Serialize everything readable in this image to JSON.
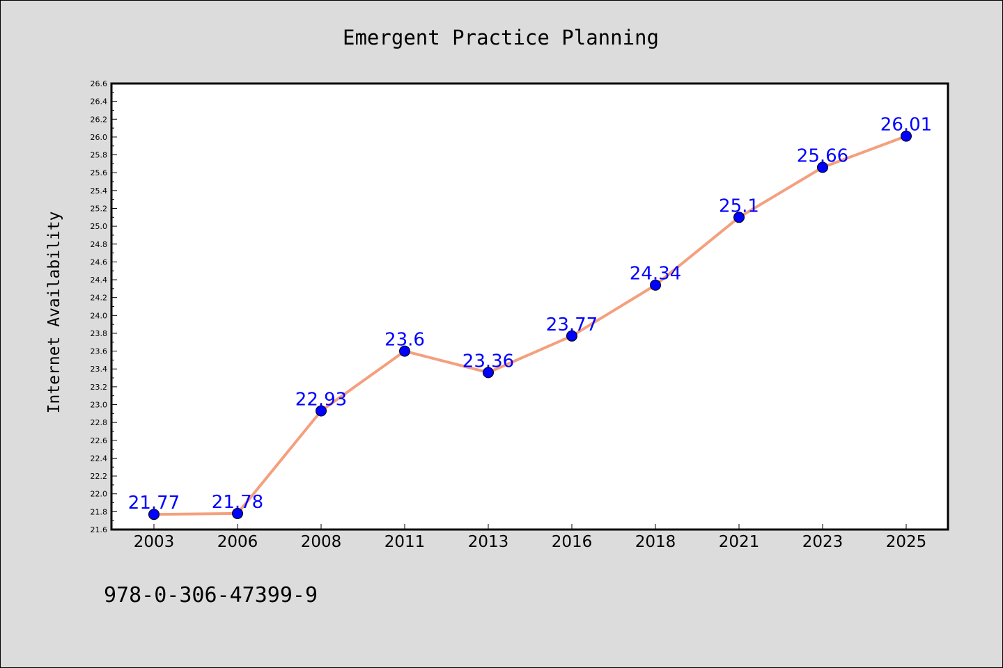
{
  "chart_data": {
    "type": "line",
    "title": "Emergent Practice Planning",
    "xlabel": "",
    "ylabel": "Internet Availability",
    "categories": [
      "2003",
      "2006",
      "2008",
      "2011",
      "2013",
      "2016",
      "2018",
      "2021",
      "2023",
      "2025"
    ],
    "series": [
      {
        "values": [
          21.77,
          21.78,
          22.93,
          23.6,
          23.36,
          23.77,
          24.34,
          25.1,
          25.66,
          26.01
        ],
        "labels": [
          "21.77",
          "21.78",
          "22.93",
          "23.6",
          "23.36",
          "23.77",
          "24.34",
          "25.1",
          "25.66",
          "26.01"
        ]
      }
    ],
    "ylim": [
      21.6,
      26.6
    ],
    "yticks": [
      "21.6",
      "21.8",
      "22.0",
      "22.2",
      "22.4",
      "22.6",
      "22.8",
      "23.0",
      "23.2",
      "23.4",
      "23.6",
      "23.8",
      "24.0",
      "24.2",
      "24.4",
      "24.6",
      "24.8",
      "25.0",
      "25.2",
      "25.4",
      "25.6",
      "25.8",
      "26.0",
      "26.2",
      "26.4",
      "26.6"
    ],
    "grid": false,
    "legend": "none",
    "colors": {
      "line": "#f4a07e",
      "marker": "#0000ff",
      "data_label": "#0000ff",
      "plot_background": "#ffffff",
      "figure_background": "#dcdcdc"
    }
  },
  "footer": {
    "isbn": "978-0-306-47399-9"
  }
}
